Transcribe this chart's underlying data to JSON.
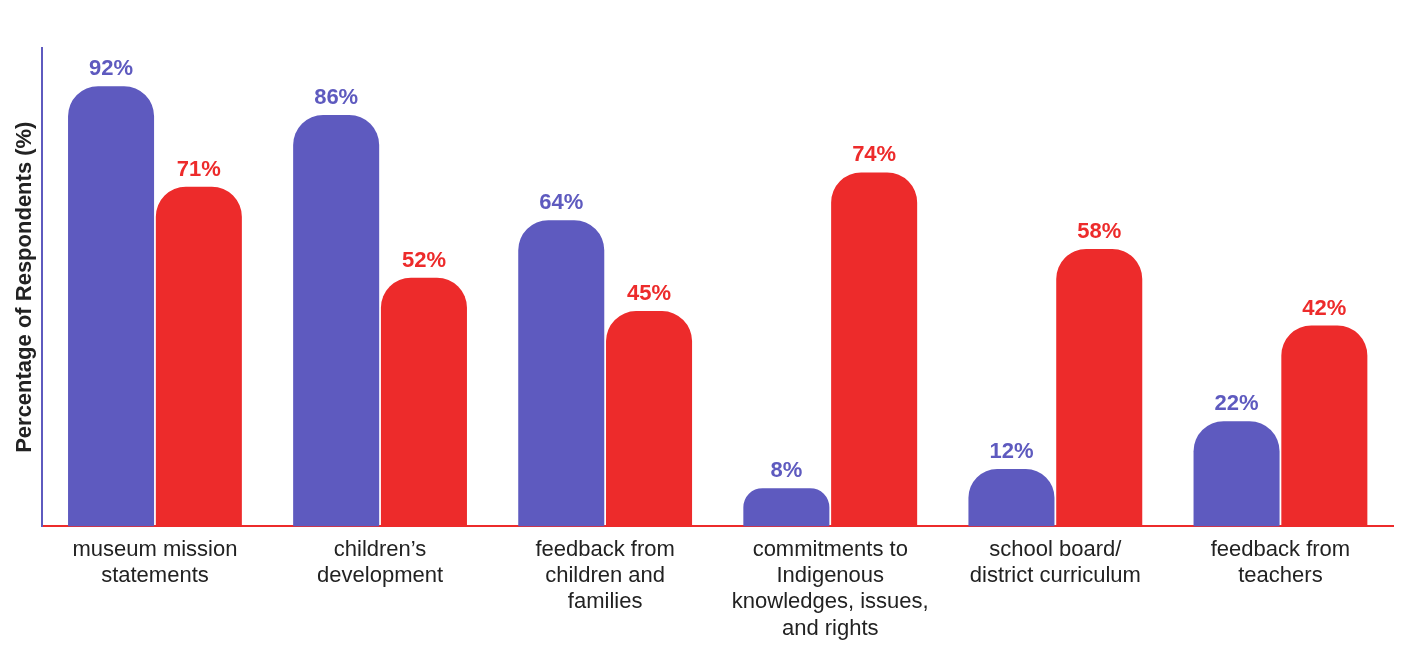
{
  "chart_data": {
    "type": "bar",
    "ylabel": "Percentage of Respondents (%)",
    "categories": [
      "museum mission statements",
      "children’s development",
      "feedback from children and families",
      "commitments to Indigenous knowledges, issues, and rights",
      "school board/ district curriculum",
      "feedback from teachers"
    ],
    "series": [
      {
        "color": "#5e5abf",
        "values": [
          92,
          86,
          64,
          8,
          12,
          22
        ],
        "value_labels": [
          "92%",
          "86%",
          "64%",
          "8%",
          "12%",
          "22%"
        ]
      },
      {
        "color": "#ed2b2b",
        "values": [
          71,
          52,
          45,
          74,
          58,
          42
        ],
        "value_labels": [
          "71%",
          "52%",
          "45%",
          "74%",
          "58%",
          "42%"
        ]
      }
    ],
    "tick_labels": "x",
    "grid": false,
    "legend": false
  }
}
